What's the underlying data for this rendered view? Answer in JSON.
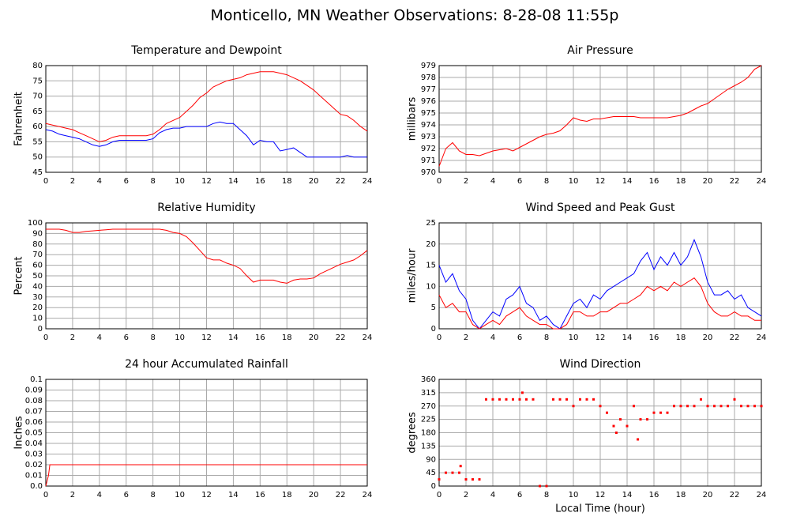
{
  "title": "Monticello, MN Weather Observations: 8-28-08 11:55p",
  "chart_data": [
    {
      "type": "line",
      "title": "Temperature and Dewpoint",
      "ylabel": "Fahrenheit",
      "x": [
        0,
        0.5,
        1,
        1.5,
        2,
        2.5,
        3,
        3.5,
        4,
        4.5,
        5,
        5.5,
        6,
        6.5,
        7,
        7.5,
        8,
        8.5,
        9,
        9.5,
        10,
        10.5,
        11,
        11.5,
        12,
        12.5,
        13,
        13.5,
        14,
        14.5,
        15,
        15.5,
        16,
        16.5,
        17,
        17.5,
        18,
        18.5,
        19,
        19.5,
        20,
        20.5,
        21,
        21.5,
        22,
        22.5,
        23,
        23.5,
        24
      ],
      "series": [
        {
          "name": "Temperature",
          "color": "#ff0000",
          "values": [
            61,
            60.5,
            60,
            59.5,
            59,
            58,
            57,
            56,
            55,
            55.5,
            56.5,
            57,
            57,
            57,
            57,
            57,
            57.5,
            59,
            61,
            62,
            63,
            65,
            67,
            69.5,
            71,
            73,
            74,
            75,
            75.5,
            76,
            77,
            77.5,
            78,
            78,
            78,
            77.5,
            77,
            76,
            75,
            73.5,
            72,
            70,
            68,
            66,
            64,
            63.5,
            62,
            60,
            58.5
          ]
        },
        {
          "name": "Dewpoint",
          "color": "#0000ff",
          "values": [
            59,
            58.5,
            57.5,
            57,
            56.5,
            56,
            55,
            54,
            53.5,
            54,
            55,
            55.5,
            55.5,
            55.5,
            55.5,
            55.5,
            56,
            58,
            59,
            59.5,
            59.5,
            60,
            60,
            60,
            60,
            61,
            61.5,
            61,
            61,
            59,
            57,
            54,
            55.5,
            55,
            55,
            52,
            52.5,
            53,
            51.5,
            50,
            50,
            50,
            50,
            50,
            50,
            50.5,
            50,
            50,
            50
          ]
        }
      ],
      "xlim": [
        0,
        24
      ],
      "xticks": [
        0,
        2,
        4,
        6,
        8,
        10,
        12,
        14,
        16,
        18,
        20,
        22,
        24
      ],
      "ylim": [
        45,
        80
      ],
      "yticks": [
        45,
        50,
        55,
        60,
        65,
        70,
        75,
        80
      ],
      "grid": true
    },
    {
      "type": "line",
      "title": "Air Pressure",
      "ylabel": "millibars",
      "x": [
        0,
        0.5,
        1,
        1.5,
        2,
        2.5,
        3,
        3.5,
        4,
        4.5,
        5,
        5.5,
        6,
        6.5,
        7,
        7.5,
        8,
        8.5,
        9,
        9.5,
        10,
        10.5,
        11,
        11.5,
        12,
        12.5,
        13,
        13.5,
        14,
        14.5,
        15,
        15.5,
        16,
        16.5,
        17,
        17.5,
        18,
        18.5,
        19,
        19.5,
        20,
        20.5,
        21,
        21.5,
        22,
        22.5,
        23,
        23.5,
        24
      ],
      "series": [
        {
          "name": "Pressure",
          "color": "#ff0000",
          "values": [
            970.5,
            972,
            972.5,
            971.8,
            971.5,
            971.5,
            971.4,
            971.6,
            971.8,
            971.9,
            972,
            971.8,
            972.1,
            972.4,
            972.7,
            973,
            973.2,
            973.3,
            973.5,
            974,
            974.6,
            974.4,
            974.3,
            974.5,
            974.5,
            974.6,
            974.7,
            974.7,
            974.7,
            974.7,
            974.6,
            974.6,
            974.6,
            974.6,
            974.6,
            974.7,
            974.8,
            975,
            975.3,
            975.6,
            975.8,
            976.2,
            976.6,
            977,
            977.3,
            977.6,
            978,
            978.7,
            979
          ]
        }
      ],
      "xlim": [
        0,
        24
      ],
      "xticks": [
        0,
        2,
        4,
        6,
        8,
        10,
        12,
        14,
        16,
        18,
        20,
        22,
        24
      ],
      "ylim": [
        970,
        979
      ],
      "yticks": [
        970,
        971,
        972,
        973,
        974,
        975,
        976,
        977,
        978,
        979
      ],
      "grid": true
    },
    {
      "type": "line",
      "title": "Relative Humidity",
      "ylabel": "Percent",
      "x": [
        0,
        0.5,
        1,
        1.5,
        2,
        2.5,
        3,
        3.5,
        4,
        4.5,
        5,
        5.5,
        6,
        6.5,
        7,
        7.5,
        8,
        8.5,
        9,
        9.5,
        10,
        10.5,
        11,
        11.5,
        12,
        12.5,
        13,
        13.5,
        14,
        14.5,
        15,
        15.5,
        16,
        16.5,
        17,
        17.5,
        18,
        18.5,
        19,
        19.5,
        20,
        20.5,
        21,
        21.5,
        22,
        22.5,
        23,
        23.5,
        24
      ],
      "series": [
        {
          "name": "Humidity",
          "color": "#ff0000",
          "values": [
            94,
            94,
            94,
            93,
            91,
            91,
            92,
            92.5,
            93,
            93.5,
            94,
            94,
            94,
            94,
            94,
            94,
            94,
            94,
            93,
            91,
            90,
            87,
            81,
            74,
            67,
            65,
            65,
            62,
            60,
            57,
            50,
            44,
            46,
            46,
            46,
            44,
            43,
            46,
            47,
            47,
            48,
            52,
            55,
            58,
            61,
            63,
            65,
            69,
            74
          ]
        }
      ],
      "xlim": [
        0,
        24
      ],
      "xticks": [
        0,
        2,
        4,
        6,
        8,
        10,
        12,
        14,
        16,
        18,
        20,
        22,
        24
      ],
      "ylim": [
        0,
        100
      ],
      "yticks": [
        0,
        10,
        20,
        30,
        40,
        50,
        60,
        70,
        80,
        90,
        100
      ],
      "grid": true
    },
    {
      "type": "line",
      "title": "Wind Speed and Peak Gust",
      "ylabel": "miles/hour",
      "x": [
        0,
        0.5,
        1,
        1.5,
        2,
        2.5,
        3,
        3.5,
        4,
        4.5,
        5,
        5.5,
        6,
        6.5,
        7,
        7.5,
        8,
        8.5,
        9,
        9.5,
        10,
        10.5,
        11,
        11.5,
        12,
        12.5,
        13,
        13.5,
        14,
        14.5,
        15,
        15.5,
        16,
        16.5,
        17,
        17.5,
        18,
        18.5,
        19,
        19.5,
        20,
        20.5,
        21,
        21.5,
        22,
        22.5,
        23,
        23.5,
        24
      ],
      "series": [
        {
          "name": "Peak Gust",
          "color": "#0000ff",
          "values": [
            15,
            11,
            13,
            9,
            7,
            2,
            0,
            2,
            4,
            3,
            7,
            8,
            10,
            6,
            5,
            2,
            3,
            1,
            0,
            3,
            6,
            7,
            5,
            8,
            7,
            9,
            10,
            11,
            12,
            13,
            16,
            18,
            14,
            17,
            15,
            18,
            15,
            17,
            21,
            17,
            11,
            8,
            8,
            9,
            7,
            8,
            5,
            4,
            3
          ]
        },
        {
          "name": "Wind Speed",
          "color": "#ff0000",
          "values": [
            8,
            5,
            6,
            4,
            4,
            1,
            0,
            1,
            2,
            1,
            3,
            4,
            5,
            3,
            2,
            1,
            1,
            0,
            0,
            1,
            4,
            4,
            3,
            3,
            4,
            4,
            5,
            6,
            6,
            7,
            8,
            10,
            9,
            10,
            9,
            11,
            10,
            11,
            12,
            10,
            6,
            4,
            3,
            3,
            4,
            3,
            3,
            2,
            2
          ]
        }
      ],
      "xlim": [
        0,
        24
      ],
      "xticks": [
        0,
        2,
        4,
        6,
        8,
        10,
        12,
        14,
        16,
        18,
        20,
        22,
        24
      ],
      "ylim": [
        0,
        25
      ],
      "yticks": [
        0,
        5,
        10,
        15,
        20,
        25
      ],
      "grid": true
    },
    {
      "type": "line",
      "title": "24 hour Accumulated Rainfall",
      "ylabel": "Inches",
      "x": [
        0,
        0.2,
        0.3,
        24
      ],
      "series": [
        {
          "name": "Rainfall",
          "color": "#ff0000",
          "values": [
            0,
            0.01,
            0.02,
            0.02
          ]
        }
      ],
      "xlim": [
        0,
        24
      ],
      "xticks": [
        0,
        2,
        4,
        6,
        8,
        10,
        12,
        14,
        16,
        18,
        20,
        22,
        24
      ],
      "ylim": [
        0,
        0.1
      ],
      "yticks": [
        {
          "value": 0,
          "label": "0.0"
        },
        0.01,
        0.02,
        0.03,
        0.04,
        0.05,
        0.06,
        0.07,
        0.08,
        0.09,
        0.1
      ],
      "grid": true
    },
    {
      "type": "scatter",
      "title": "Wind Direction",
      "ylabel": "degrees",
      "xlabel": "Local Time (hour)",
      "color": "#ff0000",
      "x": [
        0,
        0.5,
        1,
        1.5,
        1.6,
        2,
        2.5,
        3,
        3.5,
        4,
        4.5,
        5,
        5.5,
        6,
        6.2,
        6.5,
        7,
        7.5,
        8,
        8.5,
        9,
        9.5,
        10,
        10.5,
        11,
        11.5,
        12,
        12.5,
        13,
        13.2,
        13.5,
        14,
        14.5,
        14.8,
        15,
        15.5,
        16,
        16.5,
        17,
        17.5,
        18,
        18.5,
        19,
        19.5,
        20,
        20.5,
        21,
        21.5,
        22,
        22.5,
        23,
        23.5,
        24
      ],
      "values": [
        22.5,
        45,
        45,
        45,
        67.5,
        22.5,
        22.5,
        22.5,
        292.5,
        292.5,
        292.5,
        292.5,
        292.5,
        292.5,
        315,
        292.5,
        292.5,
        0,
        0,
        292.5,
        292.5,
        292.5,
        270,
        292.5,
        292.5,
        292.5,
        270,
        247.5,
        202.5,
        180,
        225,
        202.5,
        270,
        157.5,
        225,
        225,
        247.5,
        247.5,
        247.5,
        270,
        270,
        270,
        270,
        292.5,
        270,
        270,
        270,
        270,
        292.5,
        270,
        270,
        270,
        270
      ],
      "xlim": [
        0,
        24
      ],
      "xticks": [
        0,
        2,
        4,
        6,
        8,
        10,
        12,
        14,
        16,
        18,
        20,
        22,
        24
      ],
      "ylim": [
        0,
        360
      ],
      "yticks": [
        0,
        45,
        90,
        135,
        180,
        225,
        270,
        315,
        360
      ],
      "grid": true
    }
  ]
}
